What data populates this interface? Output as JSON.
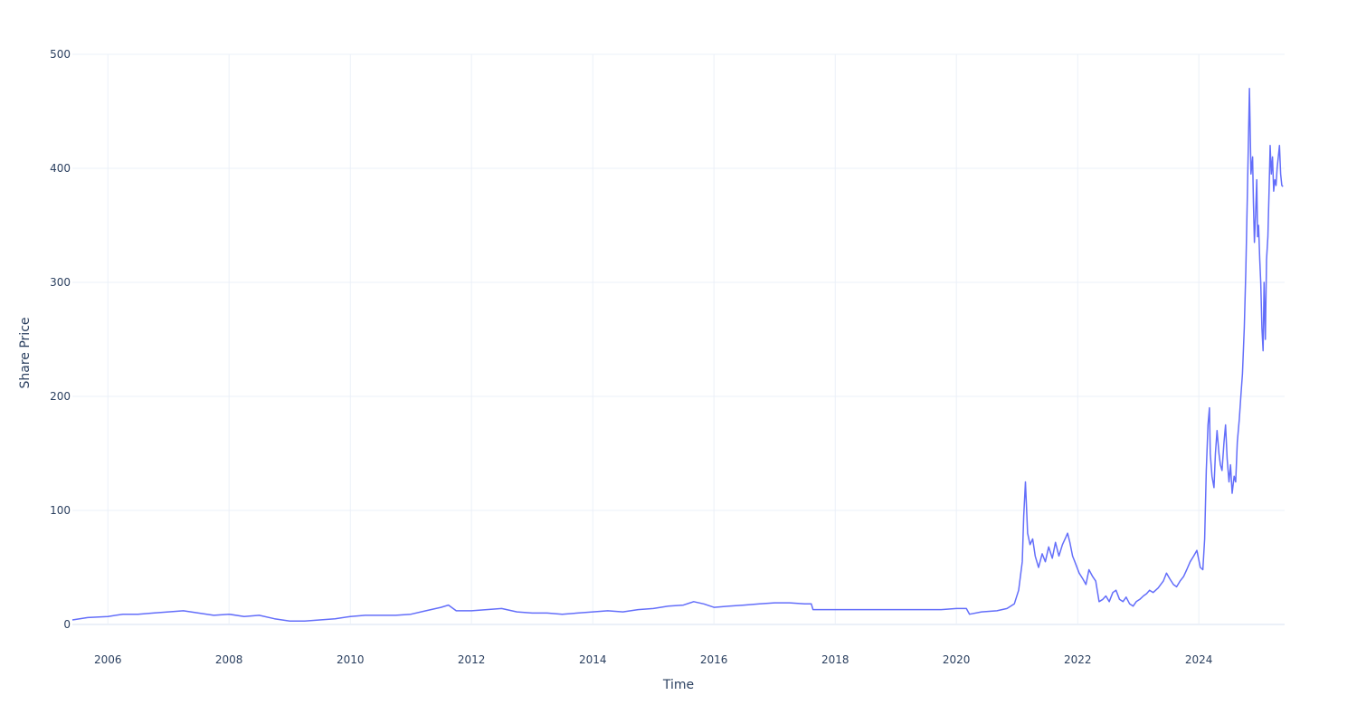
{
  "chart_data": {
    "type": "line",
    "title": "",
    "xlabel": "Time",
    "ylabel": "Share Price",
    "x_ticks": [
      "2006",
      "2008",
      "2010",
      "2012",
      "2014",
      "2016",
      "2018",
      "2020",
      "2022",
      "2024"
    ],
    "y_ticks": [
      "0",
      "100",
      "200",
      "300",
      "400",
      "500"
    ],
    "xlim": [
      "2005-06-01",
      "2025-06-01"
    ],
    "ylim": [
      0,
      500
    ],
    "grid": true,
    "line_color": "#636efa",
    "series": [
      {
        "x": [
          "2005-06-01",
          "2005-09-01",
          "2006-01-01",
          "2006-04-01",
          "2006-07-01",
          "2006-10-01",
          "2007-01-01",
          "2007-04-01",
          "2007-07-01",
          "2007-10-01",
          "2008-01-01",
          "2008-04-01",
          "2008-07-01",
          "2008-10-01",
          "2009-01-01",
          "2009-04-01",
          "2009-07-01",
          "2009-10-01",
          "2010-01-01",
          "2010-04-01",
          "2010-07-01",
          "2010-10-01",
          "2011-01-01",
          "2011-04-01",
          "2011-07-01",
          "2011-08-15",
          "2011-10-01",
          "2012-01-01",
          "2012-04-01",
          "2012-07-01",
          "2012-10-01",
          "2013-01-01",
          "2013-04-01",
          "2013-07-01",
          "2013-10-01",
          "2014-01-01",
          "2014-04-01",
          "2014-07-01",
          "2014-10-01",
          "2015-01-01",
          "2015-04-01",
          "2015-07-01",
          "2015-09-01",
          "2015-11-01",
          "2016-01-01",
          "2016-04-01",
          "2016-07-01",
          "2016-10-01",
          "2017-01-01",
          "2017-04-01",
          "2017-07-01",
          "2017-08-10",
          "2017-08-20",
          "2018-01-01",
          "2018-06-01",
          "2018-10-01",
          "2019-01-01",
          "2019-06-01",
          "2019-10-01",
          "2020-01-01",
          "2020-03-01",
          "2020-03-20",
          "2020-06-01",
          "2020-09-01",
          "2020-11-01",
          "2020-12-15",
          "2021-01-10",
          "2021-02-01",
          "2021-02-10",
          "2021-02-20",
          "2021-03-05",
          "2021-03-20",
          "2021-04-05",
          "2021-04-20",
          "2021-05-10",
          "2021-06-01",
          "2021-06-20",
          "2021-07-10",
          "2021-08-01",
          "2021-08-20",
          "2021-09-10",
          "2021-10-01",
          "2021-10-20",
          "2021-11-01",
          "2021-11-15",
          "2021-12-01",
          "2021-12-15",
          "2022-01-10",
          "2022-02-01",
          "2022-02-20",
          "2022-03-10",
          "2022-04-01",
          "2022-04-20",
          "2022-05-10",
          "2022-06-01",
          "2022-06-20",
          "2022-07-10",
          "2022-08-01",
          "2022-08-20",
          "2022-09-10",
          "2022-10-01",
          "2022-10-20",
          "2022-11-10",
          "2022-12-01",
          "2022-12-20",
          "2023-01-10",
          "2023-02-01",
          "2023-02-20",
          "2023-03-10",
          "2023-04-01",
          "2023-05-01",
          "2023-06-01",
          "2023-06-20",
          "2023-07-10",
          "2023-08-01",
          "2023-08-20",
          "2023-09-10",
          "2023-10-01",
          "2023-10-20",
          "2023-11-10",
          "2023-12-01",
          "2023-12-20",
          "2024-01-10",
          "2024-01-25",
          "2024-02-05",
          "2024-02-15",
          "2024-02-25",
          "2024-03-05",
          "2024-03-10",
          "2024-03-20",
          "2024-04-01",
          "2024-04-10",
          "2024-04-20",
          "2024-05-01",
          "2024-05-10",
          "2024-05-20",
          "2024-06-01",
          "2024-06-10",
          "2024-06-20",
          "2024-07-01",
          "2024-07-10",
          "2024-07-20",
          "2024-08-01",
          "2024-08-10",
          "2024-08-20",
          "2024-09-01",
          "2024-09-10",
          "2024-09-20",
          "2024-10-01",
          "2024-10-10",
          "2024-10-20",
          "2024-11-01",
          "2024-11-10",
          "2024-11-20",
          "2024-11-25",
          "2024-12-01",
          "2024-12-08",
          "2024-12-15",
          "2024-12-20",
          "2024-12-26",
          "2025-01-02",
          "2025-01-08",
          "2025-01-15",
          "2025-01-22",
          "2025-01-28",
          "2025-02-05",
          "2025-02-12",
          "2025-02-20",
          "2025-02-27",
          "2025-03-06",
          "2025-03-13",
          "2025-03-20",
          "2025-03-27",
          "2025-04-03",
          "2025-04-10",
          "2025-04-17",
          "2025-04-24",
          "2025-05-01",
          "2025-05-08",
          "2025-05-15",
          "2025-05-22"
        ],
        "y": [
          4,
          6,
          7,
          9,
          9,
          10,
          11,
          12,
          10,
          8,
          9,
          7,
          8,
          5,
          3,
          3,
          4,
          5,
          7,
          8,
          8,
          8,
          9,
          12,
          15,
          17,
          12,
          12,
          13,
          14,
          11,
          10,
          10,
          9,
          10,
          11,
          12,
          11,
          13,
          14,
          16,
          17,
          20,
          18,
          15,
          16,
          17,
          18,
          19,
          19,
          18,
          18,
          13,
          13,
          13,
          13,
          13,
          13,
          13,
          14,
          14,
          9,
          11,
          12,
          14,
          18,
          30,
          55,
          95,
          125,
          80,
          70,
          75,
          60,
          50,
          62,
          55,
          68,
          58,
          72,
          60,
          70,
          76,
          80,
          72,
          60,
          55,
          45,
          40,
          35,
          48,
          42,
          38,
          20,
          22,
          25,
          20,
          28,
          30,
          22,
          20,
          24,
          18,
          16,
          20,
          22,
          25,
          27,
          30,
          28,
          32,
          38,
          45,
          40,
          35,
          33,
          38,
          42,
          48,
          55,
          60,
          65,
          50,
          48,
          75,
          135,
          175,
          190,
          150,
          130,
          120,
          150,
          170,
          150,
          140,
          135,
          160,
          175,
          145,
          125,
          140,
          115,
          130,
          125,
          160,
          180,
          200,
          220,
          260,
          310,
          380,
          470,
          395,
          410,
          370,
          335,
          360,
          390,
          340,
          350,
          320,
          300,
          260,
          240,
          300,
          250,
          320,
          340,
          380,
          420,
          395,
          410,
          380,
          390,
          385,
          400,
          410,
          420,
          395,
          385,
          384
        ]
      }
    ]
  }
}
